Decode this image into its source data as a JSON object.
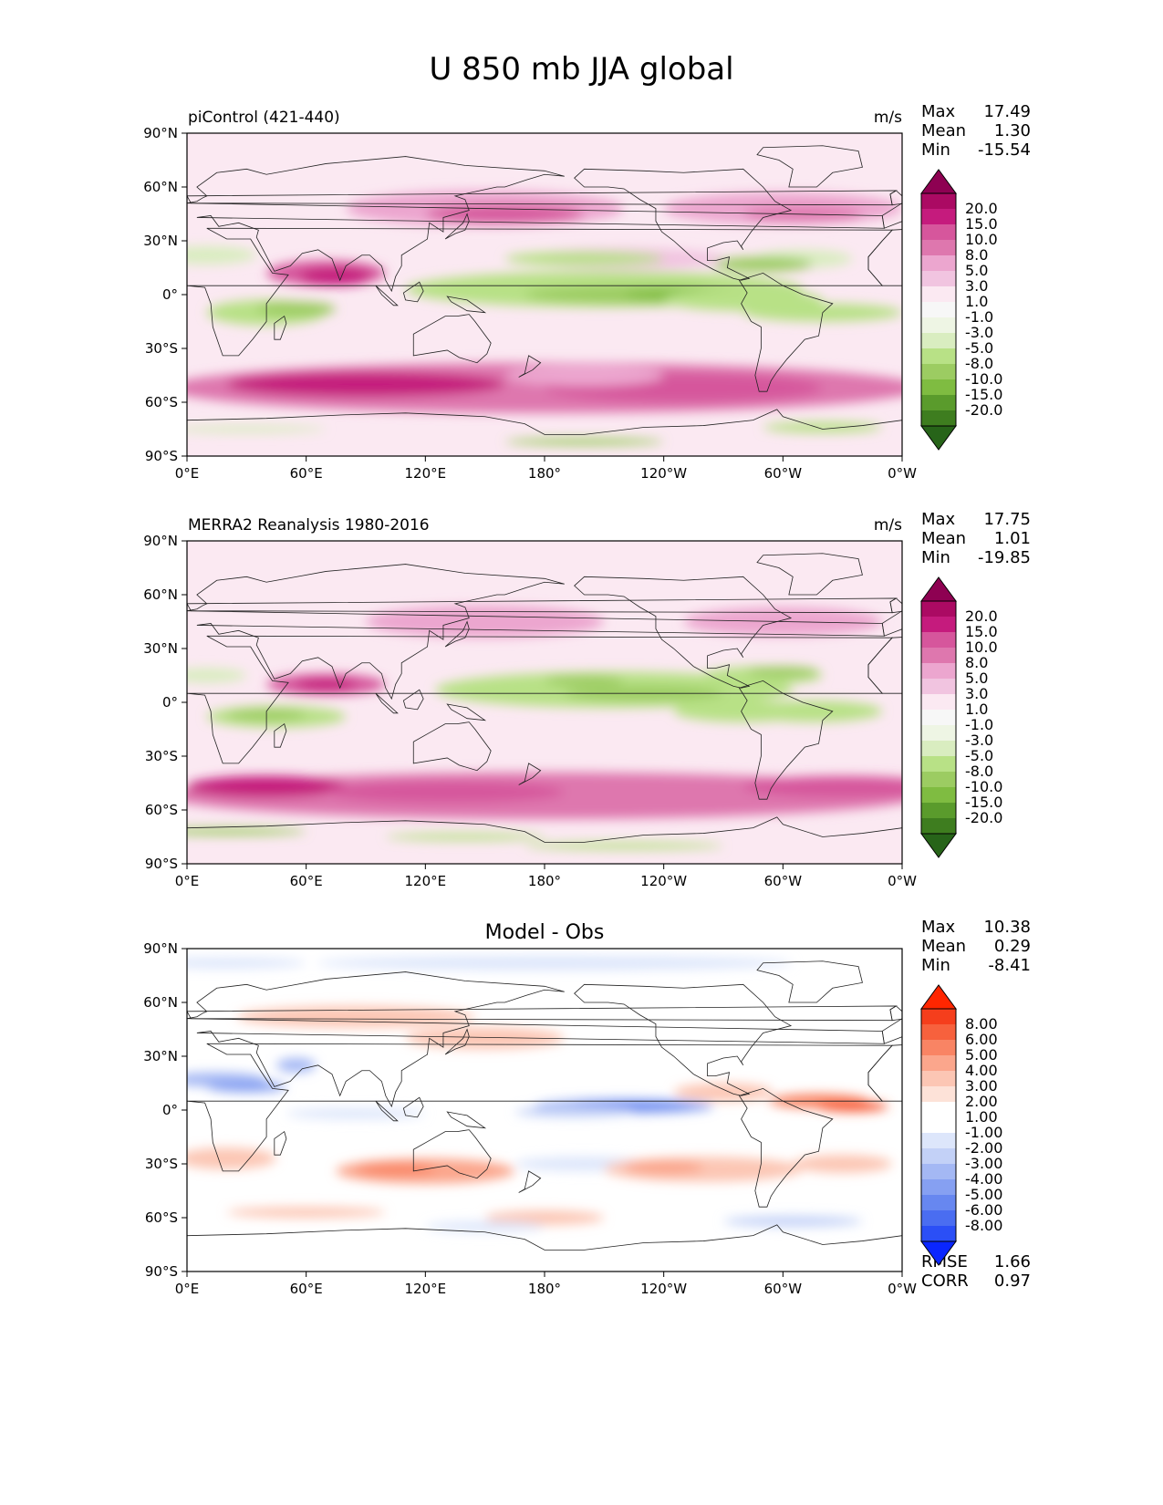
{
  "title": "U 850 mb JJA global",
  "x_ticks": [
    "0°E",
    "60°E",
    "120°E",
    "180°",
    "120°W",
    "60°W",
    "0°W"
  ],
  "y_ticks": [
    "90°N",
    "60°N",
    "30°N",
    "0°",
    "30°S",
    "60°S",
    "90°S"
  ],
  "panels": [
    {
      "left_label": "piControl (421-440)",
      "center_label": "",
      "units": "m/s",
      "stats": [
        {
          "label": "Max",
          "value": "17.49"
        },
        {
          "label": "Mean",
          "value": "1.30"
        },
        {
          "label": "Min",
          "value": "-15.54"
        }
      ],
      "colorbar": {
        "labels": [
          "20.0",
          "15.0",
          "10.0",
          "8.0",
          "5.0",
          "3.0",
          "1.0",
          "-1.0",
          "-3.0",
          "-5.0",
          "-8.0",
          "-10.0",
          "-15.0",
          "-20.0"
        ],
        "colors": [
          "#8e0152",
          "#ab0a63",
          "#c51b7d",
          "#d6569c",
          "#de77ae",
          "#eca6cf",
          "#f1c4e0",
          "#fbe9f2",
          "#f7f7f7",
          "#eef5e4",
          "#d9edc0",
          "#b8e186",
          "#9ccc62",
          "#7fbc41",
          "#5a9b2c",
          "#3e7d1f",
          "#276419"
        ]
      },
      "extra_stats": []
    },
    {
      "left_label": "MERRA2 Reanalysis 1980-2016",
      "center_label": "",
      "units": "m/s",
      "stats": [
        {
          "label": "Max",
          "value": "17.75"
        },
        {
          "label": "Mean",
          "value": "1.01"
        },
        {
          "label": "Min",
          "value": "-19.85"
        }
      ],
      "colorbar": {
        "labels": [
          "20.0",
          "15.0",
          "10.0",
          "8.0",
          "5.0",
          "3.0",
          "1.0",
          "-1.0",
          "-3.0",
          "-5.0",
          "-8.0",
          "-10.0",
          "-15.0",
          "-20.0"
        ],
        "colors": [
          "#8e0152",
          "#ab0a63",
          "#c51b7d",
          "#d6569c",
          "#de77ae",
          "#eca6cf",
          "#f1c4e0",
          "#fbe9f2",
          "#f7f7f7",
          "#eef5e4",
          "#d9edc0",
          "#b8e186",
          "#9ccc62",
          "#7fbc41",
          "#5a9b2c",
          "#3e7d1f",
          "#276419"
        ]
      },
      "extra_stats": []
    },
    {
      "left_label": "",
      "center_label": "Model - Obs",
      "units": "",
      "stats": [
        {
          "label": "Max",
          "value": "10.38"
        },
        {
          "label": "Mean",
          "value": "0.29"
        },
        {
          "label": "Min",
          "value": "-8.41"
        }
      ],
      "colorbar": {
        "labels": [
          "8.00",
          "6.00",
          "5.00",
          "4.00",
          "3.00",
          "2.00",
          "1.00",
          "-1.00",
          "-2.00",
          "-3.00",
          "-4.00",
          "-5.00",
          "-6.00",
          "-8.00"
        ],
        "colors": [
          "#ff2600",
          "#f53e1c",
          "#f7613d",
          "#f98464",
          "#fba68c",
          "#fcc6b4",
          "#fde2d8",
          "#ffffff",
          "#ffffff",
          "#dde6fb",
          "#c3d1f7",
          "#a4b8f4",
          "#86a0f2",
          "#6787f0",
          "#4a6df1",
          "#2b4ff6",
          "#0a26ff"
        ]
      },
      "extra_stats": [
        {
          "label": "RMSE",
          "value": "1.66"
        },
        {
          "label": "CORR",
          "value": "0.97"
        }
      ]
    }
  ]
}
